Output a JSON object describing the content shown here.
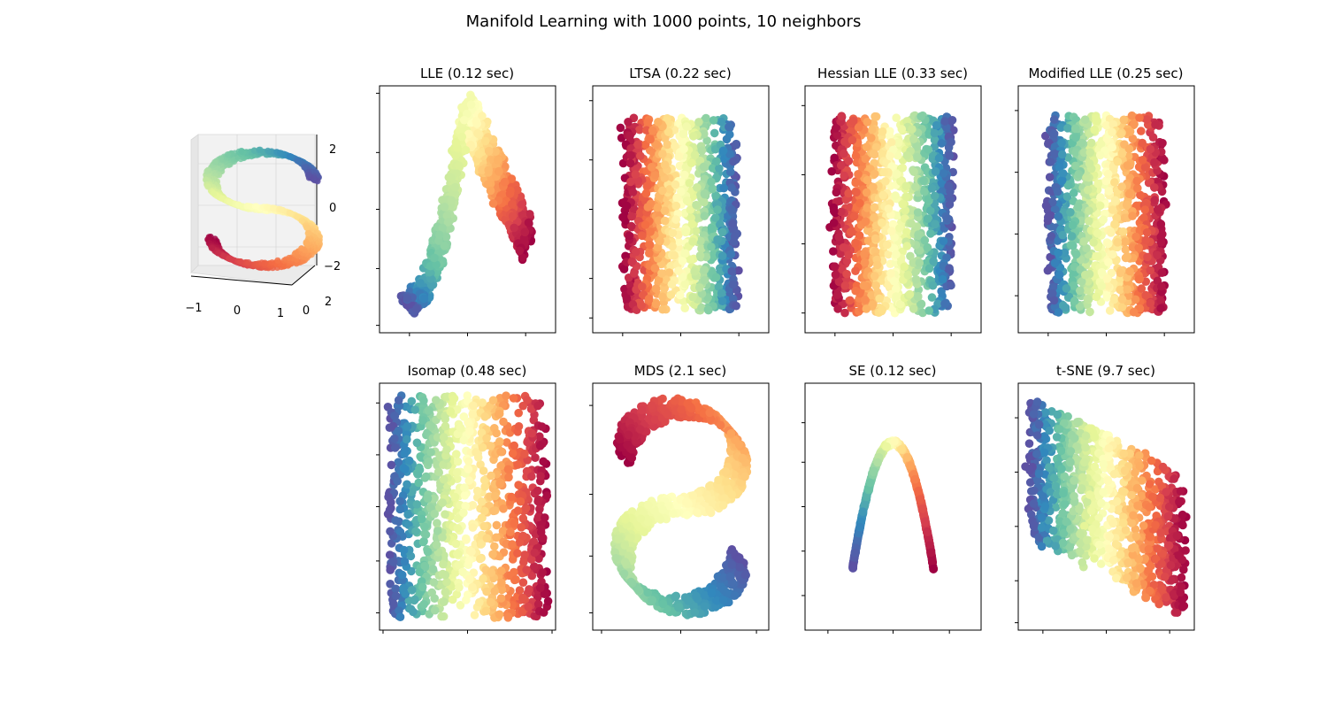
{
  "figure": {
    "title": "Manifold Learning with 1000 points, 10 neighbors",
    "colormap": "Spectral",
    "colormap_stops": [
      "#9e0142",
      "#d53e4f",
      "#f46d43",
      "#fdae61",
      "#fee08b",
      "#ffffbf",
      "#e6f598",
      "#abdda4",
      "#66c2a5",
      "#3288bd",
      "#5e4fa2"
    ]
  },
  "chart_data": [
    {
      "type": "scatter",
      "projection": "3d",
      "dataset": "S-curve",
      "n_points": 1000,
      "x_ticklabels": [
        "−1",
        "0",
        "1"
      ],
      "y_ticklabels": [
        "0",
        "2"
      ],
      "z_ticklabels": [
        "2",
        "0",
        "−2"
      ],
      "xlim": [
        -1,
        1
      ],
      "ylim": [
        0,
        2
      ],
      "zlim": [
        -2,
        2
      ],
      "grid": true
    },
    {
      "type": "scatter",
      "title": "LLE (0.12 sec)",
      "method": "LLE",
      "shape": "arch",
      "n_points": 1000,
      "grid": false,
      "show_ticklabels": false
    },
    {
      "type": "scatter",
      "title": "LTSA (0.22 sec)",
      "method": "LTSA",
      "shape": "rectangle",
      "color_direction": "left-to-right ascending",
      "n_points": 1000,
      "grid": false,
      "show_ticklabels": false
    },
    {
      "type": "scatter",
      "title": "Hessian LLE (0.33 sec)",
      "method": "Hessian LLE",
      "shape": "rectangle",
      "color_direction": "left-to-right ascending",
      "n_points": 1000,
      "grid": false,
      "show_ticklabels": false
    },
    {
      "type": "scatter",
      "title": "Modified LLE (0.25 sec)",
      "method": "Modified LLE",
      "shape": "rectangle",
      "color_direction": "left-to-right descending",
      "n_points": 1000,
      "grid": false,
      "show_ticklabels": false
    },
    {
      "type": "scatter",
      "title": "Isomap (0.48 sec)",
      "method": "Isomap",
      "shape": "rectangle",
      "color_direction": "left-to-right descending",
      "n_points": 1000,
      "grid": false,
      "show_ticklabels": false
    },
    {
      "type": "scatter",
      "title": "MDS (2.1 sec)",
      "method": "MDS",
      "shape": "S-curve",
      "n_points": 1000,
      "grid": false,
      "show_ticklabels": false
    },
    {
      "type": "scatter",
      "title": "SE (0.12 sec)",
      "method": "SE",
      "shape": "thin arch",
      "n_points": 1000,
      "grid": false,
      "show_ticklabels": false
    },
    {
      "type": "scatter",
      "title": "t-SNE (9.7 sec)",
      "method": "t-SNE",
      "shape": "clustered band",
      "n_points": 1000,
      "grid": false,
      "show_ticklabels": false
    }
  ]
}
